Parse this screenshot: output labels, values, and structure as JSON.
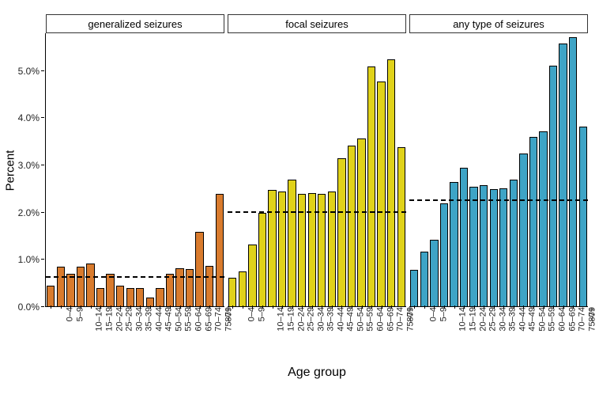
{
  "chart": {
    "type": "bar-faceted",
    "background_color": "#ffffff",
    "axis_color": "#000000",
    "strip_border_color": "#333333",
    "bar_border_color": "#000000",
    "ref_line_color": "#000000",
    "x_title": "Age group",
    "y_title": "Percent",
    "y_title_fontsize": 15,
    "x_title_fontsize": 16,
    "tick_fontsize": 12,
    "strip_fontsize": 13,
    "ylim": [
      0,
      5.8
    ],
    "y_ticks": [
      0.0,
      1.0,
      2.0,
      3.0,
      4.0,
      5.0
    ],
    "y_tick_labels": [
      "0.0%",
      "1.0%",
      "2.0%",
      "3.0%",
      "4.0%",
      "5.0%"
    ],
    "categories": [
      "0–4",
      "5–9",
      "10–14",
      "15–19",
      "20–24",
      "25–29",
      "30–34",
      "35–39",
      "40–44",
      "45–49",
      "50–54",
      "55–59",
      "60–64",
      "65–69",
      "70–74",
      "75–79",
      "80+"
    ],
    "panels": [
      {
        "label": "generalized seizures",
        "bar_color": "#d97b2d",
        "ref_value": 0.62,
        "values": [
          0.45,
          0.85,
          0.7,
          0.85,
          0.92,
          0.4,
          0.7,
          0.45,
          0.4,
          0.4,
          0.2,
          0.4,
          0.7,
          0.82,
          0.8,
          1.6,
          0.88
        ]
      },
      {
        "label": "generalized seizures",
        "overflow_bar": {
          "value": 2.4,
          "color": "#d97b2d"
        }
      },
      {
        "label": "focal seizures",
        "bar_color": "#e0d21a",
        "ref_value": 2.0,
        "values": [
          0.62,
          0.75,
          1.33,
          2.0,
          2.48,
          2.45,
          2.7,
          2.4,
          2.42,
          2.4,
          2.45,
          3.15,
          3.42,
          3.57,
          5.1,
          4.78,
          5.25
        ]
      },
      {
        "label": "focal seizures",
        "overflow_bar": {
          "value": 3.38,
          "color": "#e0d21a"
        }
      },
      {
        "label": "any type of seizures",
        "bar_color": "#3ea4c6",
        "ref_value": 2.25,
        "values": [
          0.78,
          1.18,
          1.43,
          2.2,
          2.65,
          2.95,
          2.55,
          2.58,
          2.5,
          2.52,
          2.7,
          3.25,
          3.6,
          3.72,
          5.12,
          5.58,
          5.72
        ]
      },
      {
        "label": "any type of seizures",
        "overflow_bar": {
          "value": 3.82,
          "color": "#3ea4c6"
        }
      }
    ],
    "visible_panels": [
      {
        "label": "generalized seizures",
        "bar_color": "#d97b2d",
        "ref_value": 0.62,
        "values": [
          0.45,
          0.85,
          0.7,
          0.85,
          0.92,
          0.4,
          0.7,
          0.45,
          0.4,
          0.4,
          0.2,
          0.4,
          0.7,
          0.82,
          0.8,
          1.6,
          0.88,
          2.4
        ]
      },
      {
        "label": "focal seizures",
        "bar_color": "#e0d21a",
        "ref_value": 2.0,
        "values": [
          0.62,
          0.75,
          1.33,
          2.0,
          2.48,
          2.45,
          2.7,
          2.4,
          2.42,
          2.4,
          2.45,
          3.15,
          3.42,
          3.57,
          5.1,
          4.78,
          5.25,
          3.38
        ]
      },
      {
        "label": "any type of seizures",
        "bar_color": "#3ea4c6",
        "ref_value": 2.25,
        "values": [
          0.78,
          1.18,
          1.43,
          2.2,
          2.65,
          2.95,
          2.55,
          2.58,
          2.5,
          2.52,
          2.7,
          3.25,
          3.6,
          3.72,
          5.12,
          5.58,
          5.72,
          3.82
        ]
      }
    ],
    "bar_gap_ratio": 0.18
  }
}
